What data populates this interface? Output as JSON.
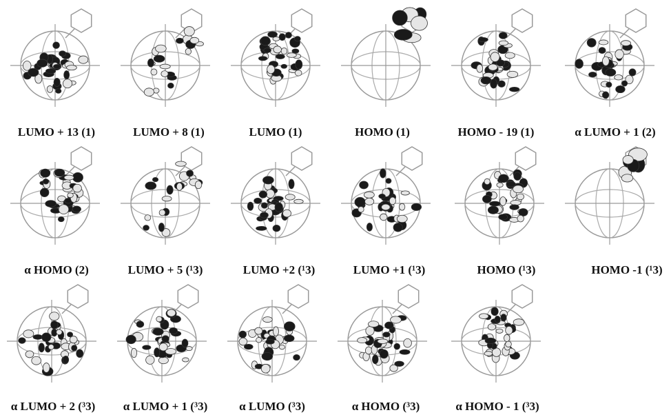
{
  "panels": [
    {
      "label": "LUMO + 13 (1)"
    },
    {
      "label": "LUMO + 8 (1)"
    },
    {
      "label": "LUMO (1)"
    },
    {
      "label": "HOMO (1)"
    },
    {
      "label": "HOMO - 19 (1)"
    },
    {
      "label": "α LUMO + 1 (2)"
    },
    {
      "label": "α HOMO (2)"
    },
    {
      "label": "LUMO + 5 (¹3)"
    },
    {
      "label": "LUMO +2 (¹3)"
    },
    {
      "label": "LUMO +1 (¹3)"
    },
    {
      "label": "HOMO (¹3)"
    },
    {
      "label": "HOMO -1 (¹3)"
    },
    {
      "label": "α LUMO + 2 (³3)"
    },
    {
      "label": "α LUMO + 1 (³3)"
    },
    {
      "label": "α LUMO (³3)"
    },
    {
      "label": "α HOMO (³3)"
    },
    {
      "label": "α HOMO - 1 (³3)"
    }
  ]
}
